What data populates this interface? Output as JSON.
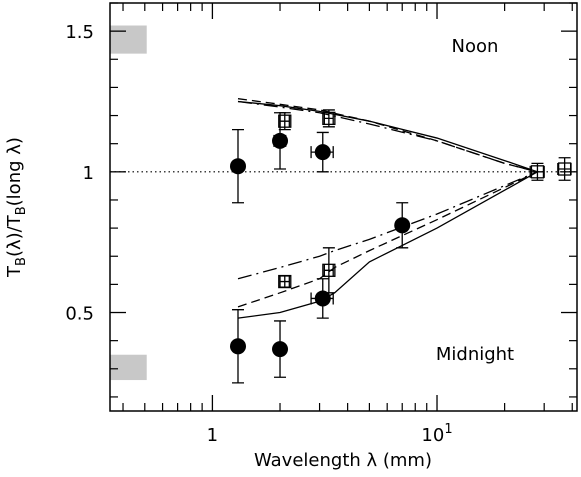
{
  "chart_data": {
    "type": "scatter",
    "xlabel": "Wavelength λ (mm)",
    "ylabel": [
      "T",
      "B",
      "(λ)/T",
      "B",
      "(long λ)"
    ],
    "annotations": [
      "Noon",
      "Midnight"
    ],
    "log_x": true,
    "xlim": [
      0.35,
      42
    ],
    "ylim": [
      0.15,
      1.6
    ],
    "xticks": [
      1,
      {
        "value": 10,
        "label": "10",
        "exponent": "1"
      }
    ],
    "xminor_ticks": [
      0.4,
      0.5,
      0.6,
      0.7,
      0.8,
      0.9,
      2,
      3,
      4,
      5,
      6,
      7,
      8,
      9,
      20,
      30,
      40
    ],
    "yticks": [
      0.5,
      1,
      1.5
    ],
    "yminor_ticks": [
      0.2,
      0.3,
      0.4,
      0.6,
      0.7,
      0.8,
      0.9,
      1.1,
      1.2,
      1.3,
      1.4,
      1.6
    ],
    "reference_line": 1,
    "bands": [
      {
        "x": [
          0.35,
          0.51
        ],
        "y": [
          1.42,
          1.52
        ]
      },
      {
        "x": [
          0.35,
          0.51
        ],
        "y": [
          0.26,
          0.35
        ]
      }
    ],
    "series": [
      {
        "marker": "circle",
        "color": "#000",
        "x": [
          1.3,
          2.0,
          3.1
        ],
        "values": [
          1.02,
          1.11,
          1.07
        ],
        "yerr": [
          0.13,
          0.1,
          0.07
        ],
        "xerr": [
          null,
          0.12,
          0.35
        ]
      },
      {
        "marker": "circle",
        "color": "#000",
        "x": [
          1.3,
          2.0,
          3.1,
          7.0
        ],
        "values": [
          0.38,
          0.37,
          0.55,
          0.81
        ],
        "yerr": [
          0.13,
          0.1,
          0.07,
          0.08
        ],
        "xerr": [
          null,
          null,
          0.35,
          null
        ]
      },
      {
        "marker": "square",
        "color": "#000",
        "x": [
          2.1,
          3.3,
          28,
          37
        ],
        "values": [
          1.18,
          1.19,
          1.0,
          1.01
        ],
        "yerr": [
          0.03,
          0.03,
          0.03,
          0.04
        ],
        "xerr": [
          0.1,
          0.15,
          2,
          2.5
        ]
      },
      {
        "marker": "square",
        "color": "#000",
        "x": [
          2.1,
          3.3
        ],
        "values": [
          0.61,
          0.65
        ],
        "yerr": [
          0.02,
          0.08
        ],
        "xerr": [
          0.1,
          0.15
        ]
      },
      {
        "marker": "line",
        "dash": "solid",
        "color": "#000",
        "x": [
          1.3,
          2,
          3,
          5,
          10,
          20,
          28
        ],
        "values": [
          1.25,
          1.235,
          1.215,
          1.18,
          1.12,
          1.04,
          1.0
        ]
      },
      {
        "marker": "line",
        "dash": "dashed",
        "color": "#000",
        "x": [
          1.3,
          2,
          3,
          5,
          10,
          20,
          28
        ],
        "values": [
          1.26,
          1.24,
          1.22,
          1.18,
          1.11,
          1.03,
          1.0
        ]
      },
      {
        "marker": "line",
        "dash": "dashdot",
        "color": "#000",
        "x": [
          1.3,
          2,
          3,
          5,
          10,
          20,
          28
        ],
        "values": [
          1.25,
          1.23,
          1.21,
          1.17,
          1.11,
          1.03,
          1.0
        ]
      },
      {
        "marker": "line",
        "dash": "solid",
        "color": "#000",
        "x": [
          1.3,
          2,
          3,
          3.5,
          5,
          10,
          28
        ],
        "values": [
          0.48,
          0.5,
          0.54,
          0.57,
          0.68,
          0.8,
          1.0
        ]
      },
      {
        "marker": "line",
        "dash": "dashed",
        "color": "#000",
        "x": [
          1.3,
          2,
          3,
          3.5,
          5,
          10,
          28
        ],
        "values": [
          0.52,
          0.57,
          0.62,
          0.66,
          0.72,
          0.83,
          1.0
        ]
      },
      {
        "marker": "line",
        "dash": "dashdot",
        "color": "#000",
        "x": [
          1.3,
          2,
          3,
          3.5,
          5,
          10,
          28
        ],
        "values": [
          0.62,
          0.66,
          0.7,
          0.72,
          0.76,
          0.85,
          1.0
        ]
      }
    ]
  }
}
